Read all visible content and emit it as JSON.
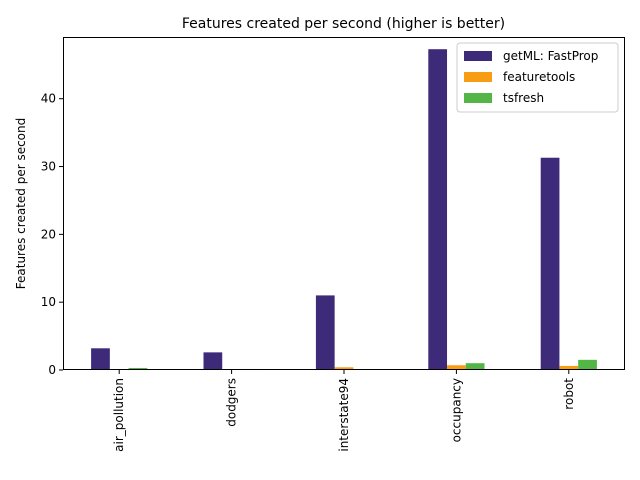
{
  "chart_data": {
    "type": "bar",
    "title": "Features created per second (higher is better)",
    "xlabel": "",
    "ylabel": "Features created per second",
    "categories": [
      "air_pollution",
      "dodgers",
      "interstate94",
      "occupancy",
      "robot"
    ],
    "series": [
      {
        "name": "getML: FastProp",
        "color": "#3d2b7a",
        "values": [
          3.2,
          2.6,
          11.0,
          47.3,
          31.3
        ]
      },
      {
        "name": "featuretools",
        "color": "#f89c14",
        "values": [
          0.1,
          0.1,
          0.4,
          0.7,
          0.6
        ]
      },
      {
        "name": "tsfresh",
        "color": "#53b545",
        "values": [
          0.3,
          0.15,
          0.02,
          1.0,
          1.5
        ]
      }
    ],
    "ylim": [
      0,
      49.1
    ],
    "yticks": [
      0,
      10,
      20,
      30,
      40
    ],
    "legend_position": "top-right",
    "grid": false
  }
}
